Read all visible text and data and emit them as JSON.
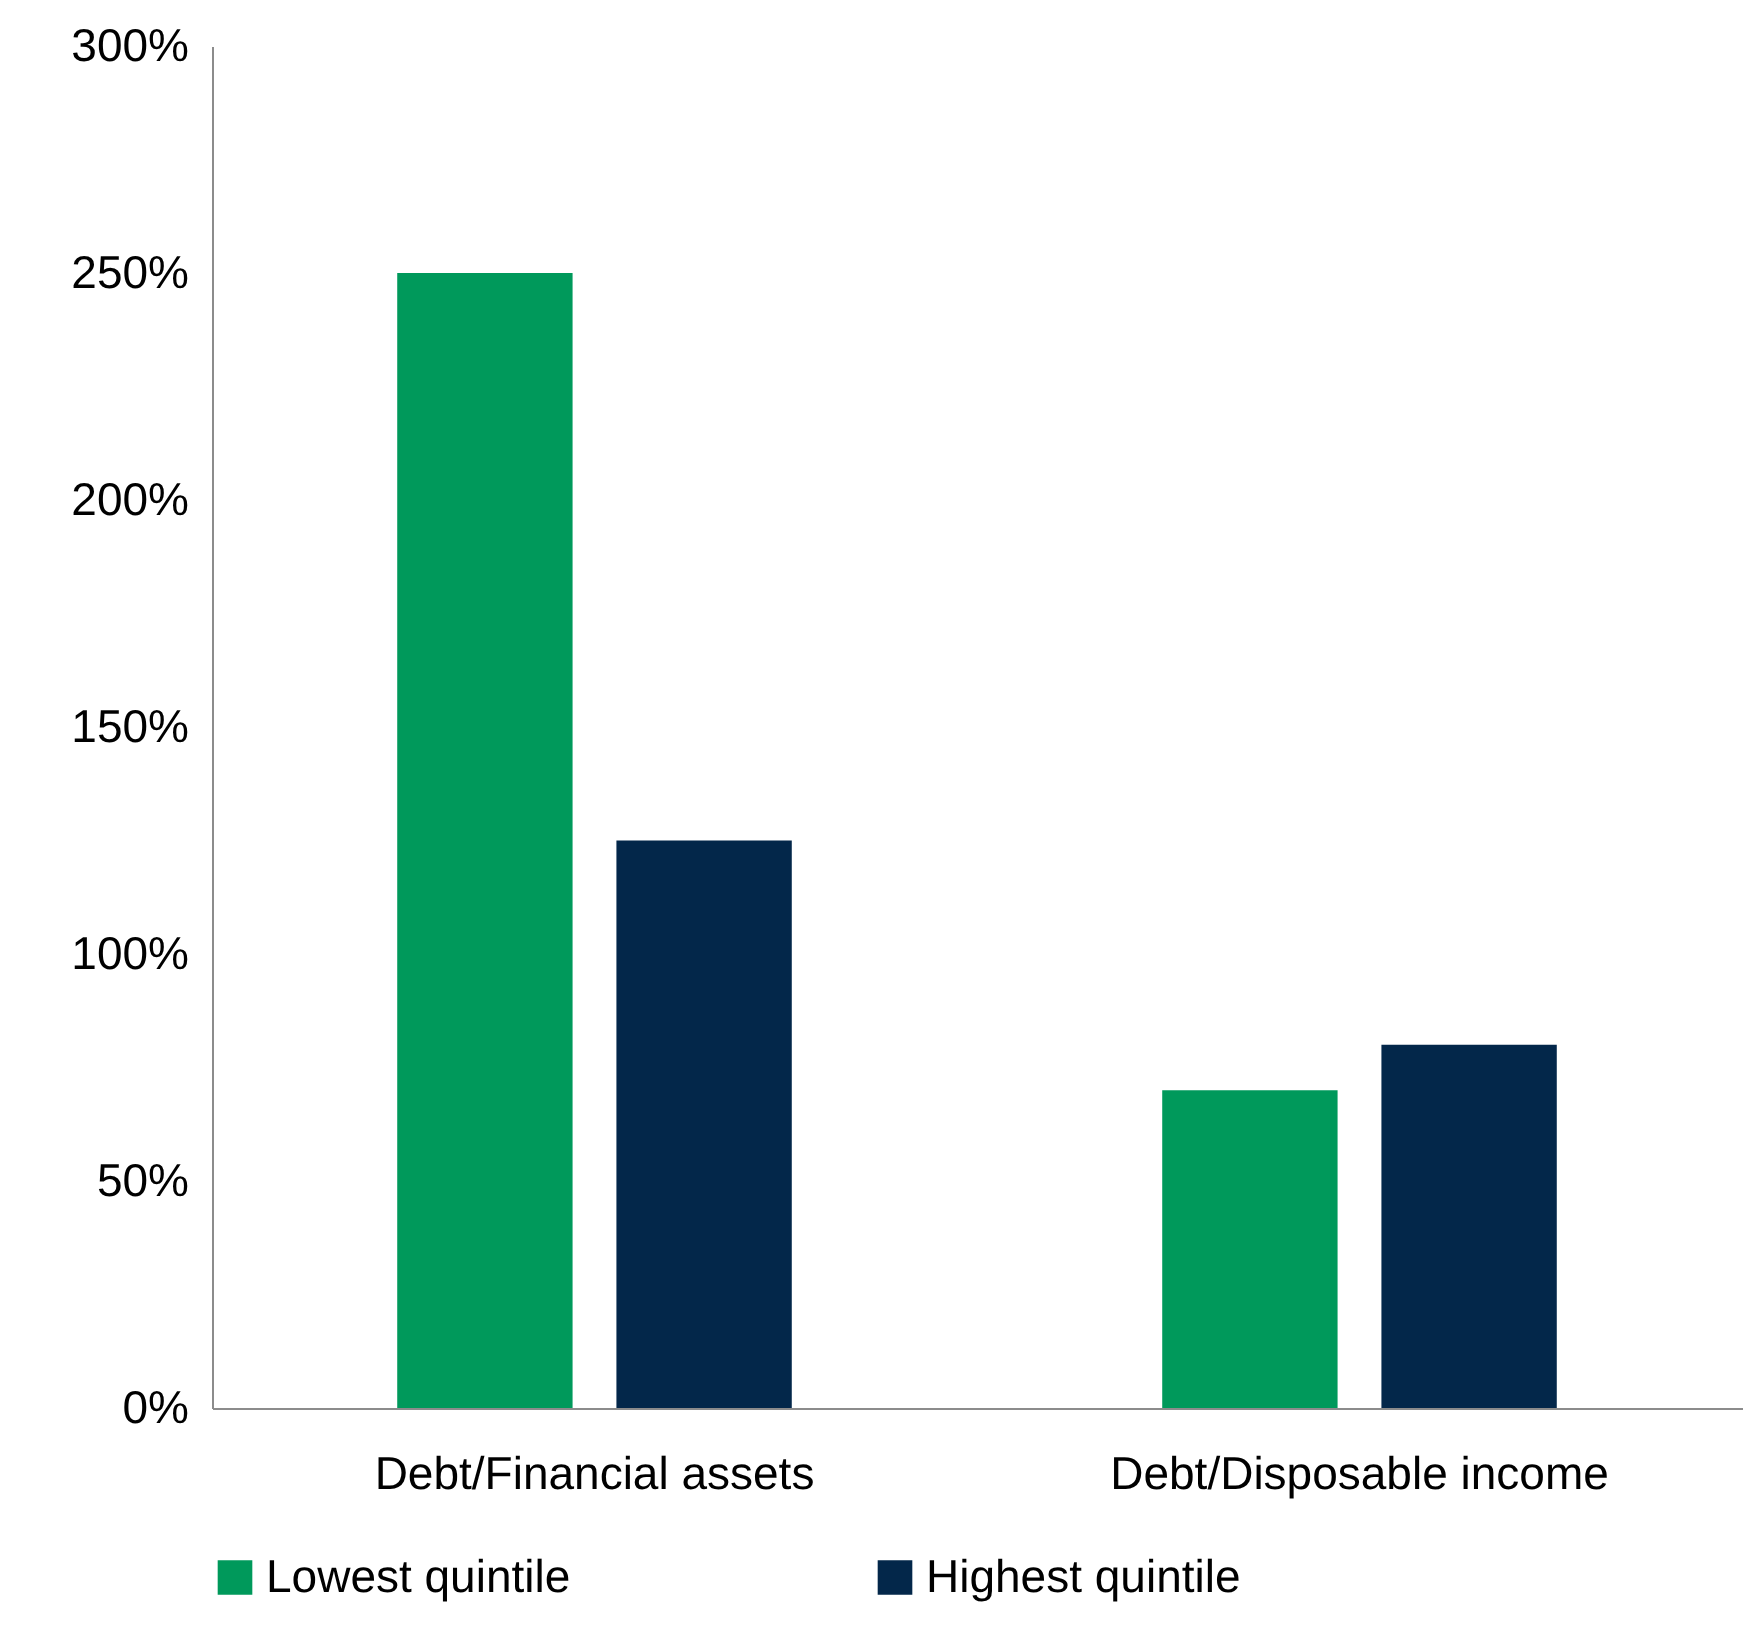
{
  "chart_data": {
    "type": "bar",
    "categories": [
      "Debt/Financial assets",
      "Debt/Disposable income"
    ],
    "series": [
      {
        "name": "Lowest quintile",
        "color": "#00995b",
        "values": [
          250,
          70
        ]
      },
      {
        "name": "Highest quintile",
        "color": "#03274a",
        "values": [
          125,
          80
        ]
      }
    ],
    "ylim": [
      0,
      300
    ],
    "yticks": [
      {
        "value": 0,
        "label": "0%"
      },
      {
        "value": 50,
        "label": "50%"
      },
      {
        "value": 100,
        "label": "100%"
      },
      {
        "value": 150,
        "label": "150%"
      },
      {
        "value": 200,
        "label": "200%"
      },
      {
        "value": 250,
        "label": "250%"
      },
      {
        "value": 300,
        "label": "300%"
      }
    ],
    "grid": false,
    "legend": "bottom"
  }
}
